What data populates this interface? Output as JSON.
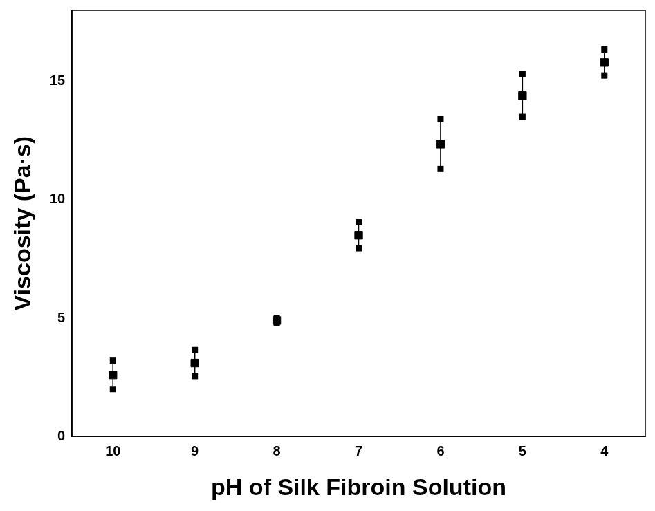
{
  "chart_data": {
    "type": "scatter",
    "x_label": "pH of Silk Fibroin Solution",
    "y_label": "Viscosity (Pa·s)",
    "x": [
      10,
      9,
      8,
      7,
      6,
      5,
      4
    ],
    "values": [
      2.6,
      3.1,
      4.9,
      8.5,
      12.35,
      14.4,
      15.8
    ],
    "errors": [
      0.6,
      0.55,
      0.1,
      0.55,
      1.05,
      0.9,
      0.55
    ],
    "xlim": [
      10.5,
      3.5
    ],
    "xticks": [
      10,
      9,
      8,
      7,
      6,
      5,
      4
    ],
    "ylim": [
      0,
      18
    ],
    "yticks": [
      0,
      5,
      10,
      15
    ],
    "color": "#000000",
    "marker": "square",
    "grid": false
  }
}
